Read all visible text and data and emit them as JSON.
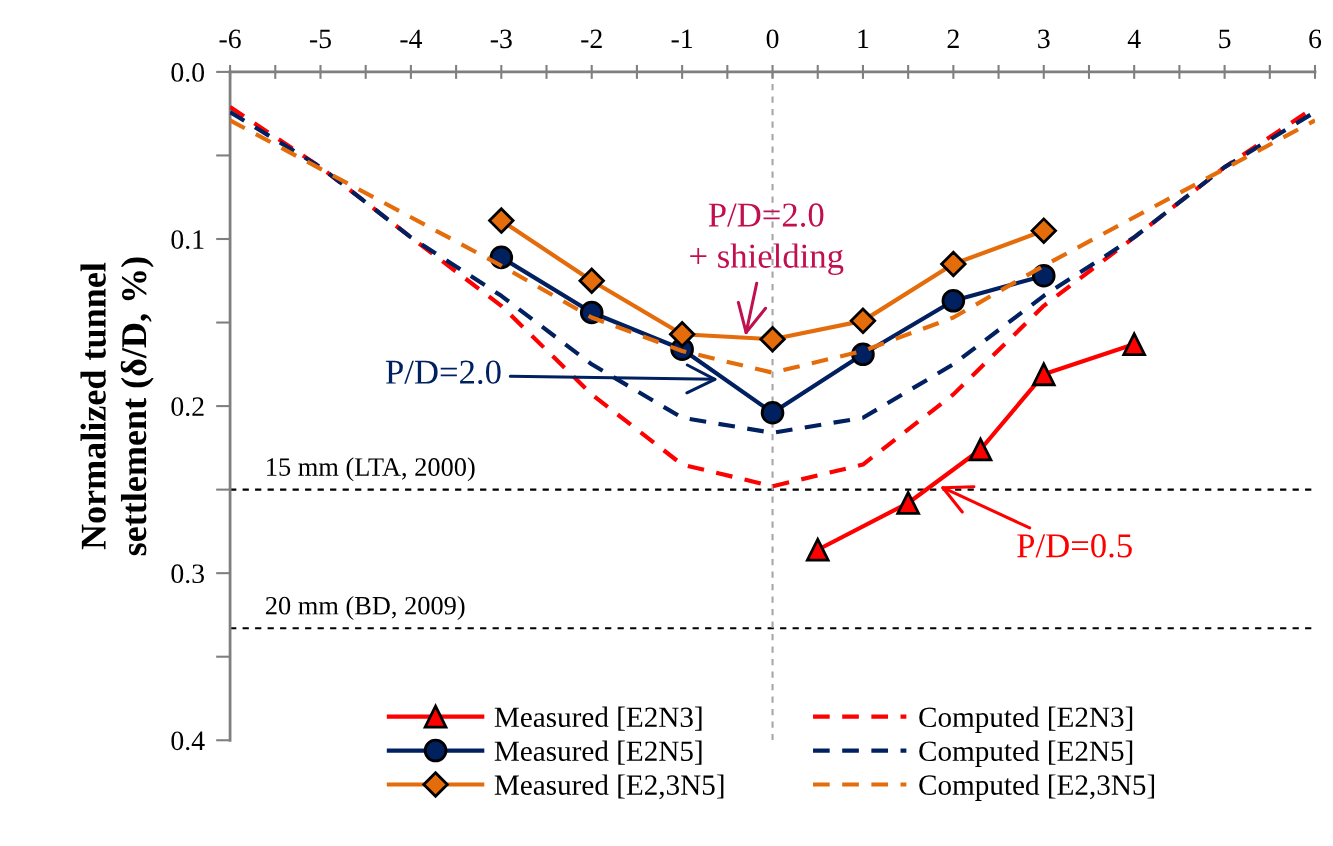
{
  "chart_data": {
    "type": "line",
    "ylabel": "Normalized tunnel settlement (δ/D, %)",
    "xlim": [
      -6,
      6
    ],
    "ylim": [
      0.4,
      0.0
    ],
    "xticks": [
      -6,
      {
        "value": -5.5,
        "label": null
      },
      -5,
      {
        "value": -4.5,
        "label": null
      },
      -4,
      {
        "value": -3.5,
        "label": null
      },
      -3,
      {
        "value": -2.5,
        "label": null
      },
      -2,
      {
        "value": -1.5,
        "label": null
      },
      -1,
      {
        "value": -0.5,
        "label": null
      },
      0,
      {
        "value": 0.5,
        "label": null
      },
      1,
      {
        "value": 1.5,
        "label": null
      },
      2,
      {
        "value": 2.5,
        "label": null
      },
      3,
      {
        "value": 3.5,
        "label": null
      },
      4,
      {
        "value": 4.5,
        "label": null
      },
      5,
      {
        "value": 5.5,
        "label": null
      },
      6
    ],
    "yticks": [
      {
        "value": 0.0,
        "label": "0.0"
      },
      {
        "value": 0.05,
        "label": null
      },
      0.1,
      {
        "value": 0.15,
        "label": null
      },
      0.2,
      {
        "value": 0.25,
        "label": null
      },
      0.3,
      {
        "value": 0.35,
        "label": null
      },
      0.4
    ],
    "grid": false,
    "legend": "bottom",
    "series": [
      {
        "name": "Measured [E2N3]",
        "color": "#ff0000",
        "marker": "triangle",
        "line_style": "solid",
        "x": [
          0.5,
          1.5,
          2.3,
          3,
          4
        ],
        "values": [
          0.286,
          0.258,
          0.226,
          0.181,
          0.163
        ]
      },
      {
        "name": "Measured [E2N5]",
        "color": "#002060",
        "marker": "circle",
        "line_style": "solid",
        "x": [
          -3,
          -2,
          -1,
          0,
          1,
          2,
          3
        ],
        "values": [
          0.111,
          0.144,
          0.166,
          0.204,
          0.169,
          0.137,
          0.122
        ]
      },
      {
        "name": "Measured [E2,3N5]",
        "color": "#e46c0a",
        "marker": "diamond",
        "line_style": "solid",
        "x": [
          -3,
          -2,
          -1,
          0,
          1,
          2,
          3
        ],
        "values": [
          0.089,
          0.125,
          0.157,
          0.16,
          0.149,
          0.115,
          0.095
        ]
      },
      {
        "name": "Computed [E2N3]",
        "color": "#ff0000",
        "marker": "none",
        "line_style": "dashed",
        "x": [
          -6,
          -5,
          -4,
          -3,
          -2,
          -1,
          0,
          1,
          2,
          3,
          4,
          5,
          6
        ],
        "values": [
          0.021,
          0.057,
          0.099,
          0.14,
          0.193,
          0.235,
          0.248,
          0.235,
          0.193,
          0.14,
          0.099,
          0.057,
          0.021
        ]
      },
      {
        "name": "Computed [E2N5]",
        "color": "#002060",
        "marker": "none",
        "line_style": "dashed",
        "x": [
          -6,
          -5,
          -4,
          -3,
          -2,
          -1,
          0,
          1,
          2,
          3,
          4,
          5,
          6
        ],
        "values": [
          0.024,
          0.057,
          0.099,
          0.134,
          0.175,
          0.207,
          0.216,
          0.207,
          0.175,
          0.134,
          0.099,
          0.057,
          0.024
        ]
      },
      {
        "name": "Computed [E2,3N5]",
        "color": "#e46c0a",
        "marker": "none",
        "line_style": "dashed",
        "x": [
          -6,
          -5,
          -4,
          -3,
          -2,
          -1,
          0,
          1,
          2,
          3,
          4,
          5,
          6
        ],
        "values": [
          0.029,
          0.058,
          0.087,
          0.116,
          0.147,
          0.167,
          0.18,
          0.167,
          0.147,
          0.116,
          0.087,
          0.058,
          0.029
        ]
      }
    ],
    "ref_lines": [
      {
        "axis": "y",
        "value": 0.25,
        "label": "15 mm (LTA, 2000)",
        "color": "#000000",
        "line_style": "dashed"
      },
      {
        "axis": "y",
        "value": 0.333,
        "label": "20 mm (BD, 2009)",
        "color": "#000000",
        "line_style": "dashed"
      },
      {
        "axis": "x",
        "value": 0,
        "label": null,
        "color": "#a6a6a6",
        "line_style": "dashed"
      }
    ],
    "annotations": [
      {
        "text": "P/D=2.0\n+ shielding",
        "x": -0.3,
        "y": 0.158
      },
      {
        "text": "P/D=2.0",
        "x": -0.6,
        "y": 0.184
      },
      {
        "text": "P/D=0.5",
        "x": 1.85,
        "y": 0.248
      }
    ]
  }
}
